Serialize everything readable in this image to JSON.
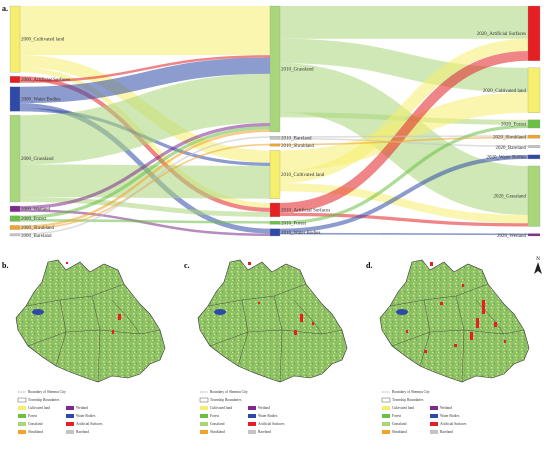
{
  "figure": {
    "panels": {
      "a": "a.",
      "b": "b.",
      "c": "c.",
      "d": "d."
    },
    "north": "N"
  },
  "colors": {
    "cultivated": "#f6ee6d",
    "artificial": "#e42024",
    "water": "#2f4aa6",
    "grassland": "#a9d67a",
    "wetland": "#7d2a8c",
    "forest": "#6abf45",
    "shrubland": "#f3a327",
    "bareland": "#c4c4c4",
    "boundary": "#555555"
  },
  "sankey": {
    "nodes_2000": [
      {
        "id": "c2000",
        "label": "2000_Cultivated land",
        "cls": "cultivated"
      },
      {
        "id": "a2000",
        "label": "2000_Artificial Surfaces",
        "cls": "artificial"
      },
      {
        "id": "w2000",
        "label": "2000_Water Bodies",
        "cls": "water"
      },
      {
        "id": "g2000",
        "label": "2000_Grassland",
        "cls": "grassland"
      },
      {
        "id": "we2000",
        "label": "2000_Wetland",
        "cls": "wetland"
      },
      {
        "id": "f2000",
        "label": "2000_Forest",
        "cls": "forest"
      },
      {
        "id": "s2000",
        "label": "2000_Shrubland",
        "cls": "shrubland"
      },
      {
        "id": "b2000",
        "label": "2000_Bareland",
        "cls": "bareland"
      }
    ],
    "nodes_2010": [
      {
        "id": "g2010",
        "label": "2010_Grassland",
        "cls": "grassland"
      },
      {
        "id": "b2010",
        "label": "2010_Bareland",
        "cls": "bareland"
      },
      {
        "id": "s2010",
        "label": "2010_Shrubland",
        "cls": "shrubland"
      },
      {
        "id": "c2010",
        "label": "2010_Cultivated land",
        "cls": "cultivated"
      },
      {
        "id": "a2010",
        "label": "2010_Artificial Surfaces",
        "cls": "artificial"
      },
      {
        "id": "f2010",
        "label": "2010_Forest",
        "cls": "forest"
      },
      {
        "id": "w2010",
        "label": "2010_Water Bodies",
        "cls": "water"
      }
    ],
    "nodes_2020": [
      {
        "id": "a2020",
        "label": "2020_Artificial Surfaces",
        "cls": "artificial"
      },
      {
        "id": "c2020",
        "label": "2020_Cultivated land",
        "cls": "cultivated"
      },
      {
        "id": "f2020",
        "label": "2020_Forest",
        "cls": "forest"
      },
      {
        "id": "s2020",
        "label": "2020_Shrubland",
        "cls": "shrubland"
      },
      {
        "id": "b2020",
        "label": "2020_Bareland",
        "cls": "bareland"
      },
      {
        "id": "w2020",
        "label": "2020_Water Bodies",
        "cls": "water"
      },
      {
        "id": "g2020",
        "label": "2020_Grassland",
        "cls": "grassland"
      },
      {
        "id": "we2020",
        "label": "2020_Wetland",
        "cls": "wetland"
      }
    ],
    "links": [
      {
        "from": "c2000",
        "to": "g2010",
        "value": 6
      },
      {
        "from": "c2000",
        "to": "c2010",
        "value": 1.5
      },
      {
        "from": "c2000",
        "to": "a2010",
        "value": 0.6
      },
      {
        "from": "a2000",
        "to": "a2010",
        "value": 0.5
      },
      {
        "from": "a2000",
        "to": "g2010",
        "value": 0.3
      },
      {
        "from": "w2000",
        "to": "g2010",
        "value": 2
      },
      {
        "from": "w2000",
        "to": "w2010",
        "value": 0.6
      },
      {
        "from": "w2000",
        "to": "c2010",
        "value": 0.4
      },
      {
        "from": "g2000",
        "to": "g2010",
        "value": 6
      },
      {
        "from": "g2000",
        "to": "c2010",
        "value": 4
      },
      {
        "from": "g2000",
        "to": "a2010",
        "value": 0.6
      },
      {
        "from": "we2000",
        "to": "g2010",
        "value": 0.4
      },
      {
        "from": "we2000",
        "to": "w2010",
        "value": 0.3
      },
      {
        "from": "f2000",
        "to": "g2010",
        "value": 0.4
      },
      {
        "from": "f2000",
        "to": "f2010",
        "value": 0.3
      },
      {
        "from": "s2000",
        "to": "g2010",
        "value": 0.3
      },
      {
        "from": "s2000",
        "to": "s2010",
        "value": 0.2
      },
      {
        "from": "b2000",
        "to": "b2010",
        "value": 0.2
      },
      {
        "from": "g2010",
        "to": "a2020",
        "value": 4
      },
      {
        "from": "g2010",
        "to": "c2020",
        "value": 3
      },
      {
        "from": "g2010",
        "to": "g2020",
        "value": 6
      },
      {
        "from": "g2010",
        "to": "f2020",
        "value": 0.6
      },
      {
        "from": "c2010",
        "to": "c2020",
        "value": 2.5
      },
      {
        "from": "c2010",
        "to": "a2020",
        "value": 1.5
      },
      {
        "from": "c2010",
        "to": "g2020",
        "value": 1
      },
      {
        "from": "a2010",
        "to": "a2020",
        "value": 1.2
      },
      {
        "from": "a2010",
        "to": "g2020",
        "value": 0.4
      },
      {
        "from": "b2010",
        "to": "s2020",
        "value": 0.2
      },
      {
        "from": "b2010",
        "to": "b2020",
        "value": 0.2
      },
      {
        "from": "f2010",
        "to": "f2020",
        "value": 0.4
      },
      {
        "from": "w2010",
        "to": "w2020",
        "value": 0.5
      },
      {
        "from": "w2010",
        "to": "we2020",
        "value": 0.2
      },
      {
        "from": "s2010",
        "to": "s2020",
        "value": 0.2
      }
    ]
  },
  "legend": {
    "boundary_city": "Boundary of Shenmu City",
    "township": "Township Boundaries",
    "cultivated": "Cultivated land",
    "forest": "Forest",
    "grassland": "Grassland",
    "shrubland": "Shrubland",
    "wetland": "Wetland",
    "water": "Water Bodies",
    "artificial": "Artificial Surfaces",
    "bareland": "Bareland"
  }
}
